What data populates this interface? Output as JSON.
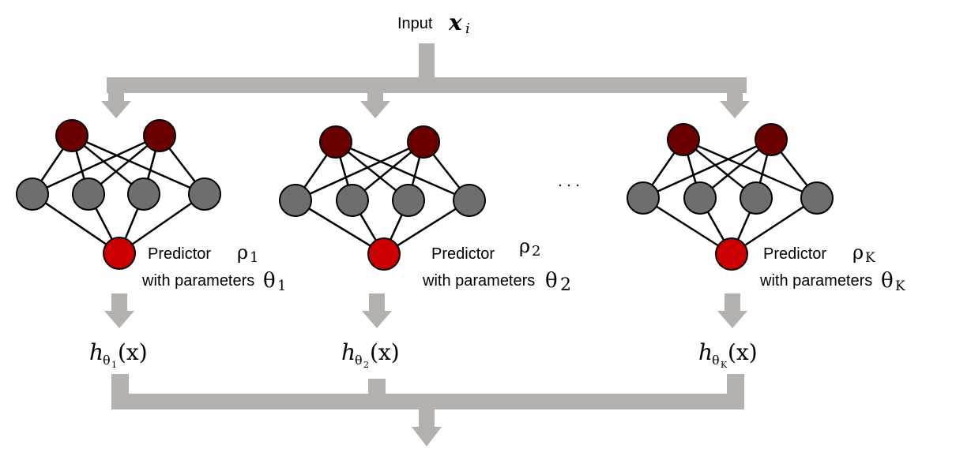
{
  "input": {
    "label": "Input",
    "var": "x",
    "sub": "i"
  },
  "ellipsis": ". . .",
  "predictors": [
    {
      "predictor_label": "Predictor",
      "rho_sym": "ρ",
      "rho_sub": "1",
      "params_label": "with parameters",
      "theta_sym": "θ",
      "theta_sub": "1",
      "h_sym": "h",
      "h_sub_theta": "θ",
      "h_sub_sub": "1",
      "h_arg": "(x)"
    },
    {
      "predictor_label": "Predictor",
      "rho_sym": "ρ",
      "rho_sub": "2",
      "params_label": "with parameters",
      "theta_sym": "θ",
      "theta_sub": "2",
      "h_sym": "h",
      "h_sub_theta": "θ",
      "h_sub_sub": "2",
      "h_arg": "(x)"
    },
    {
      "predictor_label": "Predictor",
      "rho_sym": "ρ",
      "rho_sub": "K",
      "params_label": "with parameters",
      "theta_sym": "θ",
      "theta_sub": "K",
      "h_sym": "h",
      "h_sub_theta": "θ",
      "h_sub_sub": "K",
      "h_arg": "(x)"
    }
  ],
  "colors": {
    "arrow": "#b3b0ad",
    "top_node": "#6b0000",
    "hidden_node": "#6e6e6e",
    "output_node": "#cc0000",
    "edge": "#000000"
  }
}
